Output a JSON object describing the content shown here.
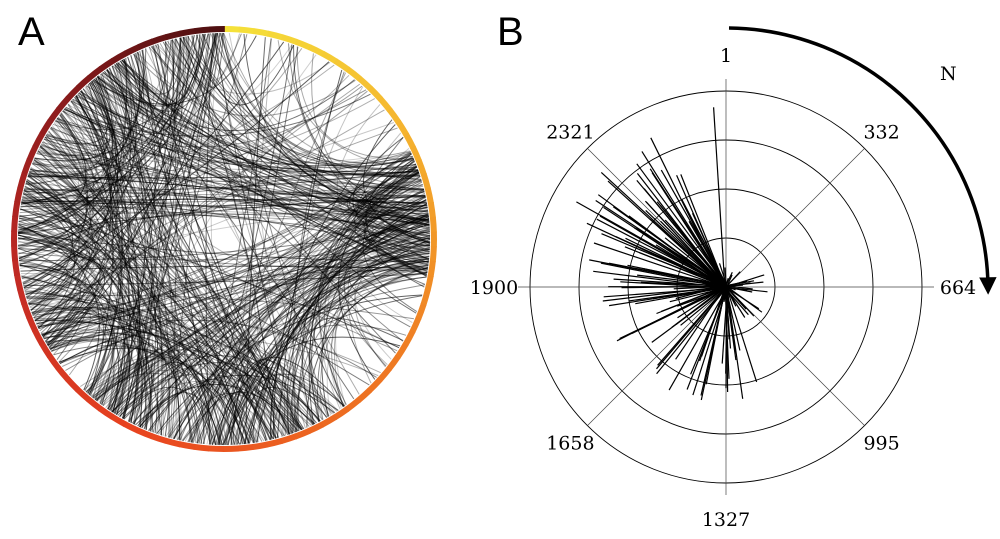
{
  "panels": {
    "a": {
      "letter": "A"
    },
    "b": {
      "letter": "B"
    }
  },
  "chord": {
    "ring_colors": [
      "#f5e13a",
      "#f5b830",
      "#f08a25",
      "#ec6420",
      "#e8421f",
      "#c22a24",
      "#8a1b1c",
      "#4a0f10"
    ],
    "chord_color": "#000000",
    "chord_count": 650
  },
  "polar": {
    "angle_labels": [
      "1",
      "332",
      "664",
      "995",
      "1327",
      "1658",
      "1900",
      "2321"
    ],
    "direction_label": "N",
    "ring_count": 4,
    "spike_color": "#000000",
    "spike_count": 140
  }
}
